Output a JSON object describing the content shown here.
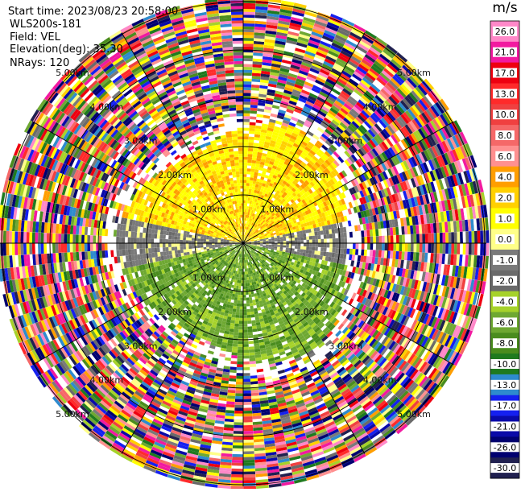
{
  "info": {
    "start_time": "Start time: 2023/08/23 20:58:00",
    "instrument": "WLS200s-181",
    "field": "Field: VEL",
    "elevation": "Elevation(deg): 35.30",
    "nrays": "NRays: 120"
  },
  "colorbar": {
    "unit": "m/s",
    "ticks": [
      "26.0",
      "21.0",
      "17.0",
      "13.0",
      "10.0",
      "8.0",
      "6.0",
      "4.0",
      "2.0",
      "1.0",
      "0.0",
      "-1.0",
      "-2.0",
      "-4.0",
      "-6.0",
      "-8.0",
      "-10.0",
      "-13.0",
      "-17.0",
      "-21.0",
      "-26.0",
      "-30.0"
    ],
    "colors": [
      "#ff88c8",
      "#f21aa0",
      "#ee0010",
      "#ff2a2a",
      "#f04040",
      "#f56868",
      "#ff9090",
      "#ff9e00",
      "#ffd000",
      "#ffff00",
      "#ffff88",
      "#7a7a7a",
      "#6a6a6a",
      "#a6d22a",
      "#6ea832",
      "#4a8c1e",
      "#1f7a1f",
      "#2e8bce",
      "#1520f0",
      "#0a0aa8",
      "#000070",
      "#202050"
    ]
  },
  "rings": {
    "labels": [
      "1.00km",
      "2.00km",
      "3.00km",
      "4.00km",
      "5.00km"
    ]
  },
  "chart_data": {
    "type": "heatmap",
    "subtype": "polar-ppi",
    "field": "VEL",
    "units": "m/s",
    "nrays": 120,
    "range_rings_km": [
      1,
      2,
      3,
      4,
      5
    ],
    "color_scale": [
      -30,
      26
    ],
    "colorbar_ticks": [
      26.0,
      21.0,
      17.0,
      13.0,
      10.0,
      8.0,
      6.0,
      4.0,
      2.0,
      1.0,
      0.0,
      -1.0,
      -2.0,
      -4.0,
      -6.0,
      -8.0,
      -10.0,
      -13.0,
      -17.0,
      -21.0,
      -26.0,
      -30.0
    ],
    "pattern": "inner region (< ~2.4 km) positive 2–6 m/s to the north (yellow/orange), negative -2 to -6 m/s to the south (green), near 0 (grey) in between; outer gates noisy over full color range"
  }
}
